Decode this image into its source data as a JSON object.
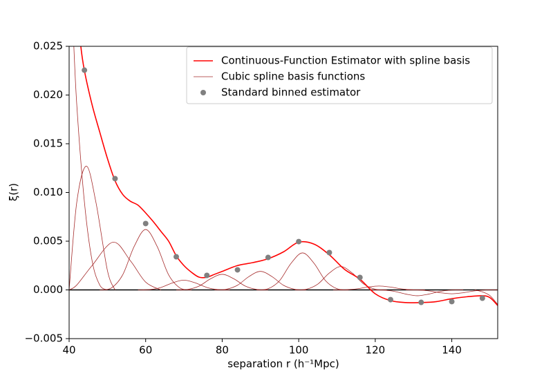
{
  "chart_data": {
    "type": "line",
    "x_label": "separation r (h⁻¹Mpc)",
    "y_label": "ξ(r)",
    "xlim": [
      40,
      152
    ],
    "ylim": [
      -0.005,
      0.025
    ],
    "xticks": [
      40,
      60,
      80,
      100,
      120,
      140
    ],
    "yticks": [
      {
        "value": -0.005,
        "label": "−0.005"
      },
      {
        "value": 0,
        "label": "0.000"
      },
      {
        "value": 0.005,
        "label": "0.005"
      },
      {
        "value": 0.01,
        "label": "0.010"
      },
      {
        "value": 0.015,
        "label": "0.015"
      },
      {
        "value": 0.02,
        "label": "0.020"
      },
      {
        "value": 0.025,
        "label": "0.025"
      }
    ],
    "hlines": [
      {
        "value": 0,
        "color": "#000000"
      }
    ],
    "legend": "upper right",
    "series": [
      {
        "name": "Continuous-Function Estimator with spline basis",
        "type": "line",
        "color": "#ff0000",
        "x": [
          42,
          43,
          44,
          46,
          48,
          50,
          52,
          54,
          56,
          58,
          60,
          62,
          64,
          66,
          68,
          70,
          72,
          74,
          76,
          78,
          80,
          84,
          88,
          92,
          96,
          100,
          104,
          108,
          112,
          116,
          120,
          124,
          128,
          132,
          136,
          140,
          144,
          148,
          150,
          152
        ],
        "values": [
          0.03,
          0.0252,
          0.0225,
          0.019,
          0.0162,
          0.0135,
          0.0112,
          0.0098,
          0.0091,
          0.0087,
          0.0079,
          0.007,
          0.006,
          0.005,
          0.0035,
          0.0025,
          0.0018,
          0.0013,
          0.0013,
          0.0016,
          0.0019,
          0.0025,
          0.0028,
          0.0032,
          0.0039,
          0.0049,
          0.0047,
          0.0036,
          0.0021,
          0.0011,
          -0.0004,
          -0.0011,
          -0.0013,
          -0.0013,
          -0.0012,
          -0.0009,
          -0.0007,
          -0.0006,
          -0.0008,
          -0.0016
        ]
      },
      {
        "name": "Cubic spline basis functions",
        "type": "curves",
        "color": "#a52a2a",
        "curves": [
          {
            "x": [
              40,
              41,
              42,
              44,
              46,
              48,
              50
            ],
            "values": [
              0.035,
              0.027,
              0.019,
              0.009,
              0.003,
              0.0005,
              0
            ]
          },
          {
            "x": [
              40,
              42,
              44.5,
              47,
              50,
              52
            ],
            "values": [
              0,
              0.009,
              0.0127,
              0.009,
              0.002,
              0
            ]
          },
          {
            "x": [
              40,
              42,
              46,
              51.5,
              56,
              60,
              64
            ],
            "values": [
              0,
              0.0005,
              0.0025,
              0.0049,
              0.003,
              0.0008,
              0
            ]
          },
          {
            "x": [
              48,
              51,
              54,
              57,
              60,
              63,
              66,
              69,
              72
            ],
            "values": [
              0,
              0.00019,
              0.00155,
              0.00446,
              0.0062,
              0.00446,
              0.00155,
              0.00019,
              0
            ]
          },
          {
            "x": [
              58,
              61,
              64,
              67,
              70,
              73,
              76,
              79,
              82
            ],
            "values": [
              0,
              3e-05,
              0.00025,
              0.00072,
              0.001,
              0.00072,
              0.00025,
              3e-05,
              0
            ]
          },
          {
            "x": [
              68,
              71,
              74,
              77,
              80,
              83,
              86,
              89,
              92
            ],
            "values": [
              0,
              5e-05,
              0.0004,
              0.00115,
              0.0016,
              0.00115,
              0.0004,
              5e-05,
              0
            ]
          },
          {
            "x": [
              78,
              81,
              84,
              87,
              90,
              93,
              96,
              99,
              102
            ],
            "values": [
              0,
              6e-05,
              0.00048,
              0.00137,
              0.0019,
              0.00137,
              0.00048,
              6e-05,
              0
            ]
          },
          {
            "x": [
              89,
              92,
              95,
              98,
              101,
              104,
              107,
              110,
              113
            ],
            "values": [
              0,
              0.00012,
              0.00095,
              0.00273,
              0.0038,
              0.00273,
              0.00095,
              0.00012,
              0
            ]
          },
          {
            "x": [
              99,
              102,
              105,
              108,
              111,
              114,
              117,
              120,
              123
            ],
            "values": [
              0,
              7e-05,
              0.0006,
              0.00173,
              0.0024,
              0.00173,
              0.0006,
              7e-05,
              0
            ]
          },
          {
            "x": [
              109,
              112,
              115,
              118,
              121,
              124,
              127,
              130,
              133
            ],
            "values": [
              0,
              1e-05,
              0.0001,
              0.00029,
              0.0004,
              0.00029,
              0.0001,
              1e-05,
              0
            ]
          },
          {
            "x": [
              119,
              122,
              125,
              128,
              131,
              134,
              137,
              140,
              143
            ],
            "values": [
              0,
              -2e-05,
              -0.00015,
              -0.00043,
              -0.0006,
              -0.00043,
              -0.00015,
              -2e-05,
              0
            ]
          },
          {
            "x": [
              128,
              131,
              134,
              137,
              140,
              143,
              146,
              149,
              152
            ],
            "values": [
              0,
              -1e-05,
              -0.0001,
              -0.00029,
              -0.0004,
              -0.00029,
              -0.0001,
              -1e-05,
              0
            ]
          },
          {
            "x": [
              146,
              148,
              150,
              152
            ],
            "values": [
              0,
              -0.0002,
              -0.0006,
              -0.0015
            ]
          }
        ]
      },
      {
        "name": "Standard binned estimator",
        "type": "scatter",
        "color": "#808080",
        "x": [
          44,
          52,
          60,
          68,
          76,
          84,
          92,
          100,
          108,
          116,
          124,
          132,
          140,
          148
        ],
        "values": [
          0.02255,
          0.01142,
          0.00681,
          0.0034,
          0.00149,
          0.00206,
          0.00333,
          0.00496,
          0.00383,
          0.00128,
          -0.001,
          -0.00128,
          -0.0012,
          -0.00085
        ]
      }
    ]
  }
}
